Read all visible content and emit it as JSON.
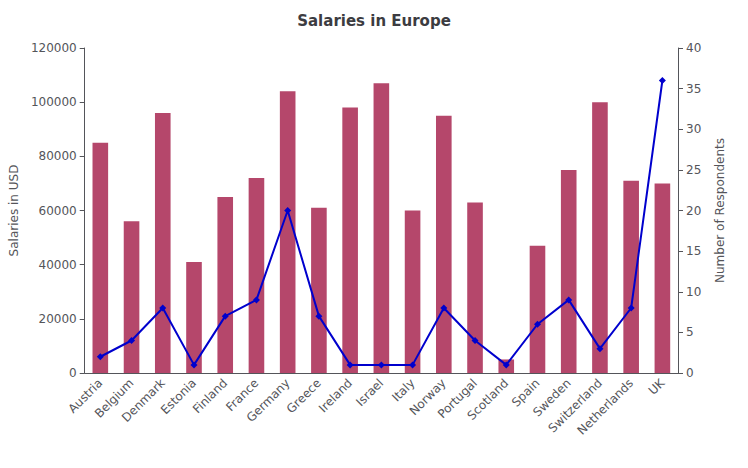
{
  "chart_data": {
    "type": "bar",
    "title": "Salaries in Europe",
    "categories": [
      "Austria",
      "Belgium",
      "Denmark",
      "Estonia",
      "Finland",
      "France",
      "Germany",
      "Greece",
      "Ireland",
      "Israel",
      "Italy",
      "Norway",
      "Portugal",
      "Scotland",
      "Spain",
      "Sweden",
      "Switzerland",
      "Netherlands",
      "UK"
    ],
    "series": [
      {
        "type": "bar",
        "color": "#b5476b",
        "values": [
          85000,
          56000,
          96000,
          41000,
          65000,
          72000,
          104000,
          61000,
          98000,
          107000,
          60000,
          95000,
          63000,
          5000,
          47000,
          75000,
          100000,
          71000,
          70000
        ]
      },
      {
        "type": "line",
        "axis": "y2",
        "color": "#0000cd",
        "marker": "diamond",
        "values": [
          2,
          4,
          8,
          1,
          7,
          9,
          20,
          7,
          1,
          1,
          1,
          8,
          4,
          1,
          6,
          9,
          3,
          8,
          36
        ]
      }
    ],
    "ylabel": "Salaries in USD",
    "y2label": "Number of Respondents",
    "ylim": [
      0,
      120000
    ],
    "yticks": [
      0,
      20000,
      40000,
      60000,
      80000,
      100000,
      120000
    ],
    "y2lim": [
      0,
      40
    ],
    "y2ticks": [
      0,
      5,
      10,
      15,
      20,
      25,
      30,
      35,
      40
    ],
    "grid": false
  }
}
